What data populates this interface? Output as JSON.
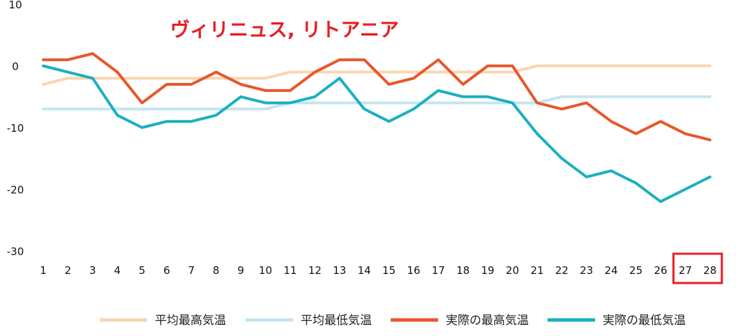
{
  "chart_data": {
    "type": "line",
    "title": "ヴィリニュス, リトアニア",
    "xlabel": "",
    "ylabel": "",
    "x": [
      1,
      2,
      3,
      4,
      5,
      6,
      7,
      8,
      9,
      10,
      11,
      12,
      13,
      14,
      15,
      16,
      17,
      18,
      19,
      20,
      21,
      22,
      23,
      24,
      25,
      26,
      27,
      28
    ],
    "x_ticks": [
      "1",
      "2",
      "3",
      "4",
      "5",
      "6",
      "7",
      "8",
      "9",
      "10",
      "11",
      "12",
      "13",
      "14",
      "15",
      "16",
      "17",
      "18",
      "19",
      "20",
      "21",
      "22",
      "23",
      "24",
      "25",
      "26",
      "27",
      "28"
    ],
    "y_ticks": [
      "10",
      "0",
      "-10",
      "-20",
      "-30"
    ],
    "ylim": [
      -30,
      10
    ],
    "grid": false,
    "legend_position": "bottom",
    "series": [
      {
        "name": "平均最高気温",
        "color": "#fad5b0",
        "values": [
          -3,
          -2,
          -2,
          -2,
          -2,
          -2,
          -2,
          -2,
          -2,
          -2,
          -1,
          -1,
          -1,
          -1,
          -1,
          -1,
          -1,
          -1,
          -1,
          -1,
          0,
          0,
          0,
          0,
          0,
          0,
          0,
          0
        ]
      },
      {
        "name": "平均最低気温",
        "color": "#c4e5ef",
        "values": [
          -7,
          -7,
          -7,
          -7,
          -7,
          -7,
          -7,
          -7,
          -7,
          -7,
          -6,
          -6,
          -6,
          -6,
          -6,
          -6,
          -6,
          -6,
          -6,
          -6,
          -6,
          -5,
          -5,
          -5,
          -5,
          -5,
          -5,
          -5
        ]
      },
      {
        "name": "実際の最高気温",
        "color": "#e8572a",
        "values": [
          1,
          1,
          2,
          -1,
          -6,
          -3,
          -3,
          -1,
          -3,
          -4,
          -4,
          -1,
          1,
          1,
          -3,
          -2,
          1,
          -3,
          0,
          0,
          -6,
          -7,
          -6,
          -9,
          -11,
          -9,
          -11,
          -12
        ]
      },
      {
        "name": "実際の最低気温",
        "color": "#1ab0c0",
        "values": [
          0,
          -1,
          -2,
          -8,
          -10,
          -9,
          -9,
          -8,
          -5,
          -6,
          -6,
          -5,
          -2,
          -7,
          -9,
          -7,
          -4,
          -5,
          -5,
          -6,
          -11,
          -15,
          -18,
          -17,
          -19,
          -22,
          -20,
          -18
        ]
      }
    ],
    "highlight_box": {
      "x_range": [
        "27",
        "28"
      ],
      "color": "#e81e25"
    }
  }
}
